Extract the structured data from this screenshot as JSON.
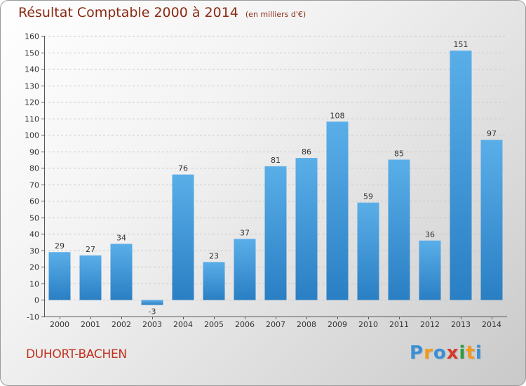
{
  "header": {
    "title": "Résultat Comptable 2000 à 2014",
    "subtitle": "(en milliers d'€)"
  },
  "commune": "DUHORT-BACHEN",
  "logo": {
    "text": "Proxiti",
    "letters": [
      {
        "ch": "P",
        "color": "#3a8fd6"
      },
      {
        "ch": "r",
        "color": "#f29a1c"
      },
      {
        "ch": "o",
        "color": "#3a8fd6"
      },
      {
        "ch": "x",
        "color": "#d63a2a"
      },
      {
        "ch": "i",
        "color": "#2e9c3c"
      },
      {
        "ch": "t",
        "color": "#f29a1c"
      },
      {
        "ch": "i",
        "color": "#3a8fd6"
      }
    ]
  },
  "chart_data": {
    "type": "bar",
    "categories": [
      "2000",
      "2001",
      "2002",
      "2003",
      "2004",
      "2005",
      "2006",
      "2007",
      "2008",
      "2009",
      "2010",
      "2011",
      "2012",
      "2013",
      "2014"
    ],
    "values": [
      29,
      27,
      34,
      -3,
      76,
      23,
      37,
      81,
      86,
      108,
      59,
      85,
      36,
      151,
      97
    ],
    "ylim": [
      -10,
      160
    ],
    "yticks": [
      -10,
      0,
      10,
      20,
      30,
      40,
      50,
      60,
      70,
      80,
      90,
      100,
      110,
      120,
      130,
      140,
      150,
      160
    ],
    "grid": true,
    "colors": {
      "bar_top": "#5aaee8",
      "bar_bottom": "#2a7fc4",
      "grid": "#c8c8c8",
      "axis": "#555555"
    }
  }
}
